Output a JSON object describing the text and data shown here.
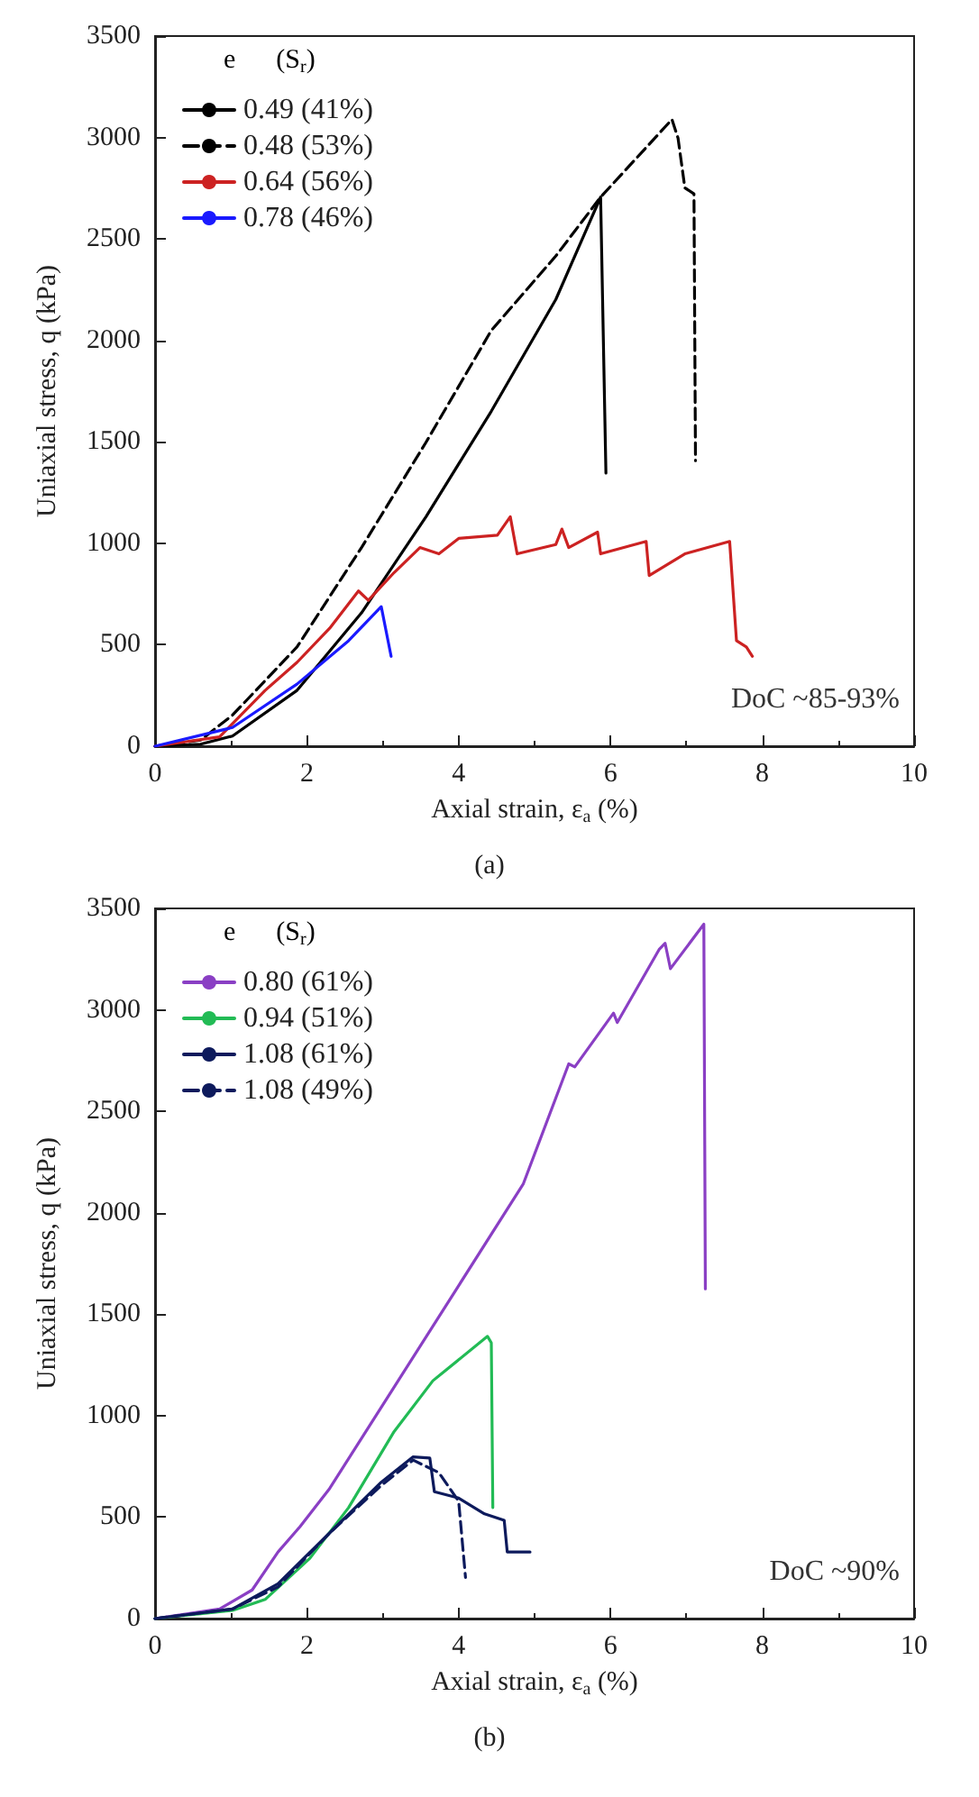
{
  "chart_data": [
    {
      "type": "line",
      "title": "(a)",
      "xlabel": "Axial strain, ε$_{a}$ (%)",
      "ylabel": "Uniaxial stress, q (kPa)",
      "legend_title": "e      (S$_{r}$)",
      "legend": "top left",
      "marker": "none",
      "grid": false,
      "xlim": [
        0,
        10
      ],
      "xticks": [
        0,
        2,
        4,
        6,
        8,
        10
      ],
      "ylim": [
        0,
        3500
      ],
      "yticks": [
        0,
        500,
        1000,
        1500,
        2000,
        2500,
        3000,
        3500
      ],
      "annotations": [
        "DoC ~85-93%"
      ],
      "series": [
        {
          "name": "0.49 (41%)",
          "color": "#000000",
          "line_style": "solid",
          "x": [
            0,
            0.6,
            1.02,
            1.87,
            2.72,
            3.57,
            4.43,
            5.28,
            5.87,
            5.94
          ],
          "values": [
            0,
            10,
            50,
            275,
            657,
            1131,
            1651,
            2202,
            2706,
            1346
          ]
        },
        {
          "name": "0.48 (53%)",
          "color": "#000000",
          "line_style": "dashed",
          "x": [
            0,
            0.6,
            1.02,
            1.87,
            2.72,
            3.57,
            4.43,
            5.28,
            5.87,
            6.81,
            6.89,
            6.98,
            7.1,
            7.12
          ],
          "values": [
            0,
            30,
            153,
            489,
            979,
            1498,
            2049,
            2416,
            2706,
            3089,
            2997,
            2752,
            2722,
            1407
          ]
        },
        {
          "name": "0.64 (56%)",
          "color": "#cc2222",
          "line_style": "solid",
          "x": [
            0,
            0.85,
            1.45,
            1.87,
            2.3,
            2.68,
            2.81,
            3.15,
            3.49,
            3.74,
            4.0,
            4.51,
            4.68,
            4.77,
            5.28,
            5.36,
            5.45,
            5.83,
            5.87,
            6.47,
            6.51,
            6.98,
            7.57,
            7.66,
            7.79,
            7.87
          ],
          "values": [
            0,
            46,
            275,
            413,
            581,
            765,
            719,
            856,
            979,
            948,
            1024,
            1040,
            1131,
            948,
            994,
            1070,
            979,
            1055,
            948,
            1009,
            841,
            948,
            1009,
            520,
            489,
            443
          ]
        },
        {
          "name": "0.78 (46%)",
          "color": "#1a1aff",
          "line_style": "solid",
          "x": [
            0,
            1.02,
            1.87,
            2.55,
            2.98,
            3.11
          ],
          "values": [
            0,
            92,
            306,
            520,
            688,
            443
          ]
        }
      ]
    },
    {
      "type": "line",
      "title": "(b)",
      "xlabel": "Axial strain, ε$_{a}$ (%)",
      "ylabel": "Uniaxial stress, q (kPa)",
      "legend_title": "e      (S$_{r}$)",
      "legend": "top left",
      "marker": "none",
      "grid": false,
      "xlim": [
        0,
        10
      ],
      "xticks": [
        0,
        2,
        4,
        6,
        8,
        10
      ],
      "ylim": [
        0,
        3500
      ],
      "yticks": [
        0,
        500,
        1000,
        1500,
        2000,
        2500,
        3000,
        3500
      ],
      "annotations": [
        "DoC ~90%"
      ],
      "series": [
        {
          "name": "0.80 (61%)",
          "color": "#8a3fc4",
          "line_style": "solid",
          "x": [
            0,
            0.85,
            1.28,
            1.62,
            1.91,
            2.3,
            3.15,
            4.0,
            4.85,
            5.45,
            5.53,
            6.04,
            6.09,
            6.64,
            6.72,
            6.79,
            7.23,
            7.25
          ],
          "values": [
            0,
            47,
            141,
            328,
            453,
            641,
            1141,
            1641,
            2141,
            2734,
            2719,
            2984,
            2938,
            3297,
            3328,
            3203,
            3422,
            1625
          ]
        },
        {
          "name": "0.94 (51%)",
          "color": "#22bb55",
          "line_style": "solid",
          "x": [
            0,
            1.02,
            1.45,
            2.04,
            2.55,
            3.15,
            3.66,
            4.38,
            4.43,
            4.45
          ],
          "values": [
            0,
            40,
            94,
            297,
            547,
            922,
            1172,
            1391,
            1359,
            547
          ]
        },
        {
          "name": "1.08 (61%)",
          "color": "#0d1a5c",
          "line_style": "solid",
          "x": [
            0,
            1.02,
            1.62,
            2.3,
            2.98,
            3.4,
            3.62,
            3.68,
            4.0,
            4.34,
            4.6,
            4.64,
            4.94
          ],
          "values": [
            0,
            47,
            172,
            422,
            672,
            797,
            791,
            625,
            594,
            516,
            484,
            328,
            328
          ]
        },
        {
          "name": "1.08 (49%)",
          "color": "#0d1a5c",
          "line_style": "dashed",
          "x": [
            0,
            1.02,
            1.62,
            2.3,
            2.98,
            3.4,
            3.74,
            4.0,
            4.09
          ],
          "values": [
            0,
            47,
            156,
            422,
            656,
            781,
            719,
            578,
            203
          ]
        }
      ]
    }
  ]
}
